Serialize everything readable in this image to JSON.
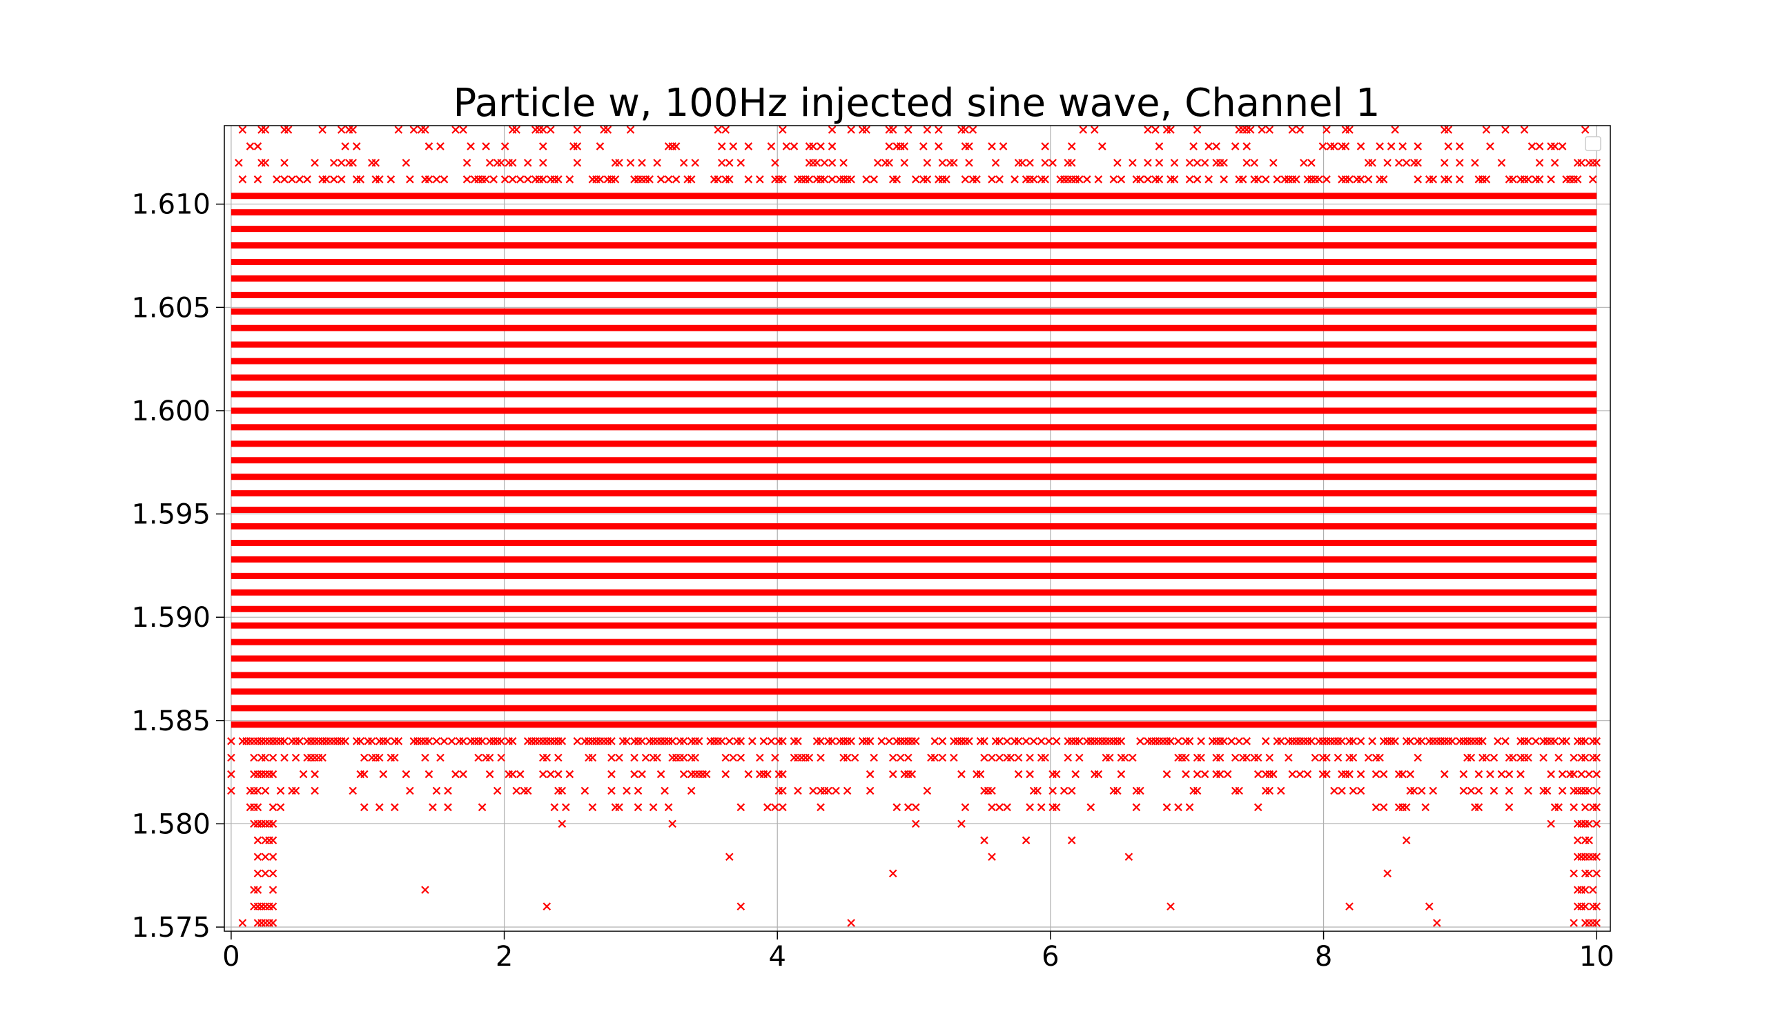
{
  "chart_data": {
    "type": "scatter",
    "title": "Particle w, 100Hz injected sine wave, Channel 1",
    "xlabel": "",
    "ylabel": "",
    "xlim": [
      -0.05,
      10.1
    ],
    "ylim": [
      1.5748,
      1.6138
    ],
    "x_ticks": [
      0,
      2,
      4,
      6,
      8,
      10
    ],
    "x_tick_labels": [
      "0",
      "2",
      "4",
      "6",
      "8",
      "10"
    ],
    "y_ticks": [
      1.575,
      1.58,
      1.585,
      1.59,
      1.595,
      1.6,
      1.605,
      1.61
    ],
    "y_tick_labels": [
      "1.575",
      "1.580",
      "1.585",
      "1.590",
      "1.595",
      "1.600",
      "1.605",
      "1.610"
    ],
    "grid": true,
    "legend": "top-right (empty)",
    "marker": "x",
    "series_color": "#ff0000",
    "quantization_step": 0.0008,
    "data_x_range": [
      0.0,
      10.0
    ],
    "core_y_range": [
      1.5848,
      1.6104
    ],
    "sparse_levels_above": [
      1.6112,
      1.612,
      1.6128,
      1.6136
    ],
    "sparse_levels_below": [
      1.584,
      1.5832,
      1.5824,
      1.5816,
      1.5808,
      1.58,
      1.5792,
      1.5784,
      1.5776,
      1.5768,
      1.576,
      1.5752
    ],
    "extremes": {
      "max_y": 1.6136,
      "min_y": 1.5752,
      "min_y_near_x": [
        0.2,
        10.0
      ]
    }
  }
}
